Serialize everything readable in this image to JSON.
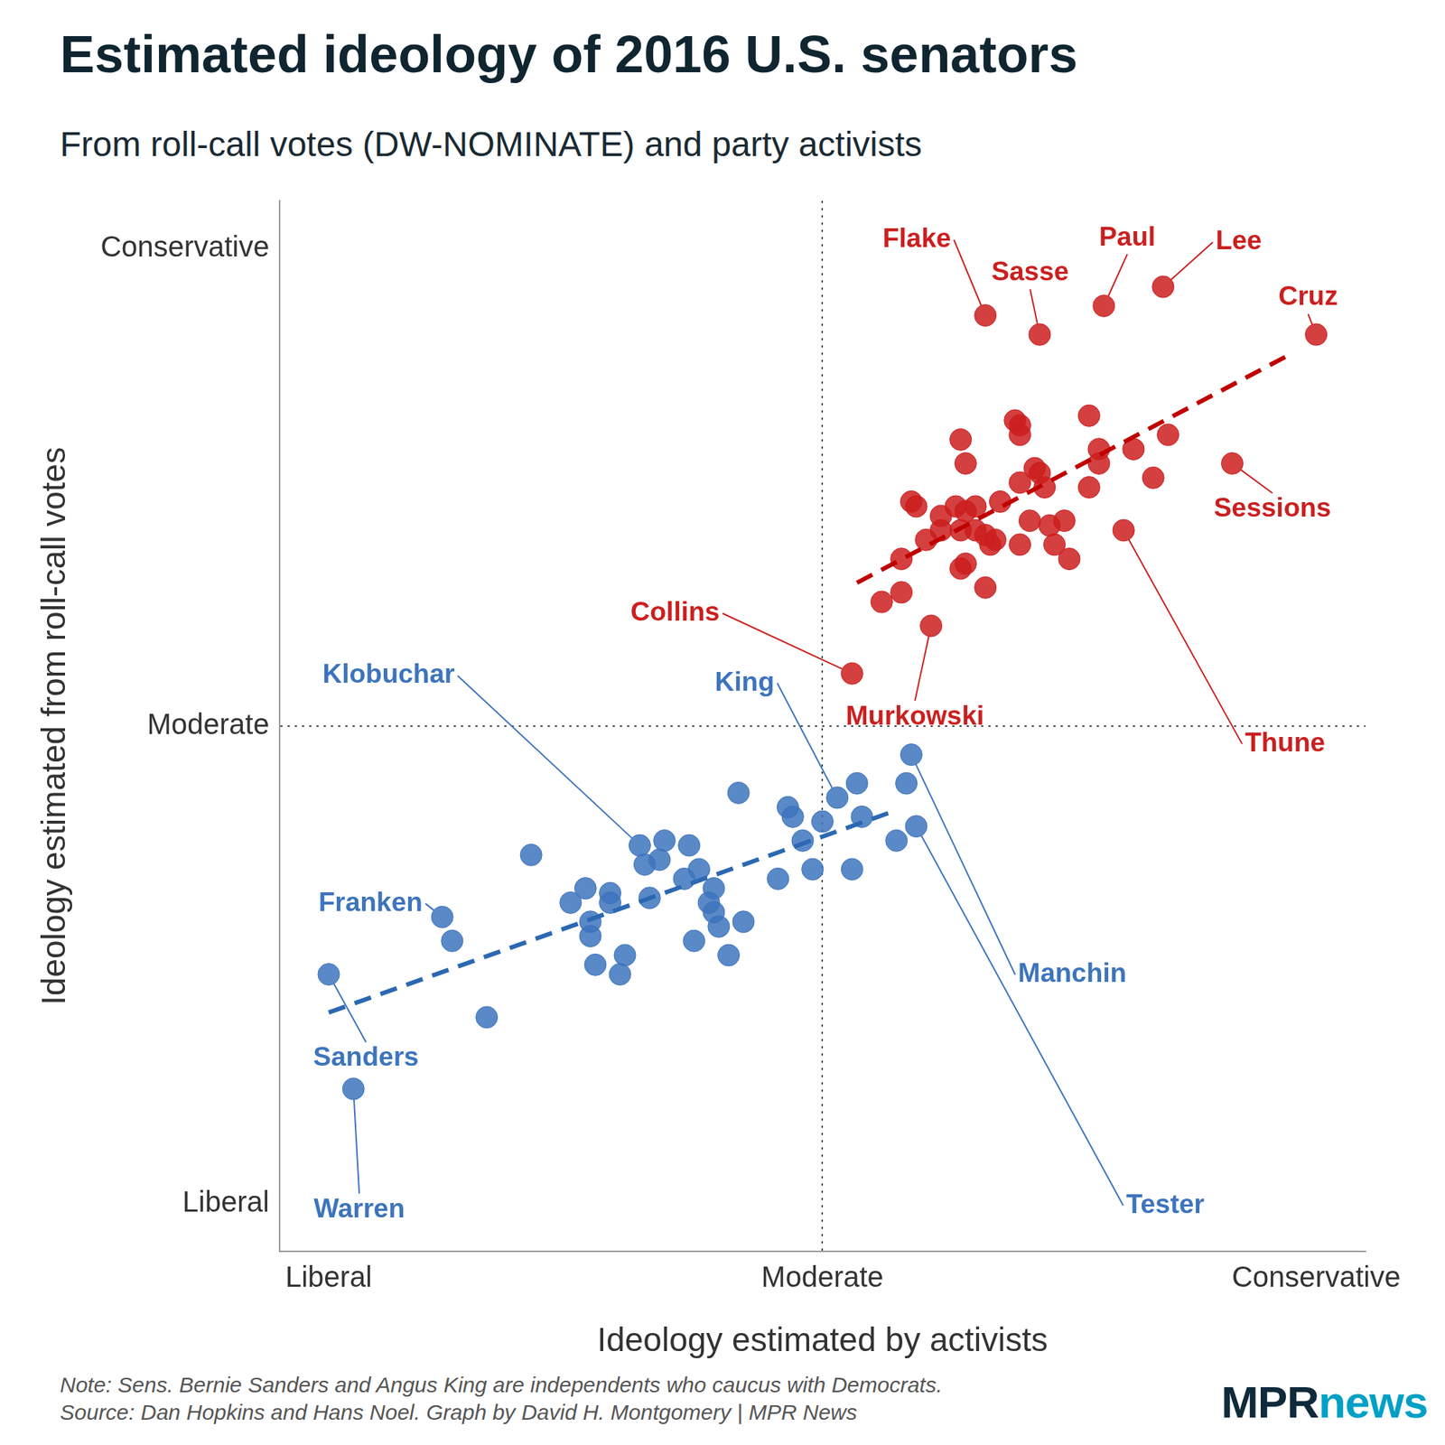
{
  "chart_data": {
    "type": "scatter",
    "title": "Estimated ideology of 2016 U.S. senators",
    "subtitle": "From roll-call votes (DW-NOMINATE) and party activists",
    "x_label": "Ideology estimated by activists",
    "y_label": "Ideology estimated from roll-call votes",
    "xlim": [
      -1.1,
      1.1
    ],
    "ylim": [
      -1.1,
      1.1
    ],
    "xticks": [
      {
        "value": -1,
        "label": "Liberal"
      },
      {
        "value": 0,
        "label": "Moderate"
      },
      {
        "value": 1,
        "label": "Conservative"
      }
    ],
    "yticks": [
      {
        "value": -1,
        "label": "Liberal"
      },
      {
        "value": 0,
        "label": "Moderate"
      },
      {
        "value": 1,
        "label": "Conservative"
      }
    ],
    "grid": true,
    "series": [
      {
        "color": "#3d74bd",
        "marker": "circle",
        "x": [
          -0.37,
          0.03,
          -0.77,
          -1.0,
          -0.95,
          0.18,
          0.19,
          0.17,
          0.07,
          0.15,
          0.08,
          0.0,
          -0.07,
          -0.06,
          -0.04,
          0.06,
          -0.02,
          -0.09,
          -0.17,
          -0.16,
          -0.19,
          -0.21,
          -0.23,
          -0.22,
          -0.25,
          -0.22,
          -0.27,
          -0.32,
          -0.33,
          -0.36,
          -0.28,
          -0.35,
          -0.43,
          -0.43,
          -0.48,
          -0.51,
          -0.47,
          -0.47,
          -0.4,
          -0.46,
          -0.41,
          -0.26,
          -0.59,
          -0.75,
          -0.68
        ],
        "values": [
          -0.25,
          -0.15,
          -0.4,
          -0.52,
          -0.76,
          -0.06,
          -0.21,
          -0.12,
          -0.12,
          -0.24,
          -0.19,
          -0.2,
          -0.17,
          -0.19,
          -0.24,
          -0.3,
          -0.3,
          -0.32,
          -0.14,
          -0.41,
          -0.48,
          -0.42,
          -0.37,
          -0.39,
          -0.3,
          -0.34,
          -0.25,
          -0.24,
          -0.28,
          -0.29,
          -0.32,
          -0.36,
          -0.35,
          -0.37,
          -0.34,
          -0.37,
          -0.41,
          -0.44,
          -0.48,
          -0.5,
          -0.52,
          -0.45,
          -0.27,
          -0.45,
          -0.61
        ],
        "point_labels": [
          "Klobuchar",
          "King",
          "Franken",
          "Sanders",
          "Warren",
          "Manchin",
          "Tester",
          null,
          null,
          null,
          null,
          null,
          null,
          null,
          null,
          null,
          null,
          null,
          null,
          null,
          null,
          null,
          null,
          null,
          null,
          null,
          null,
          null,
          null,
          null,
          null,
          null,
          null,
          null,
          null,
          null,
          null,
          null,
          null,
          null,
          null,
          null,
          null,
          null,
          null
        ]
      },
      {
        "color": "#cc1f1f",
        "marker": "circle",
        "x": [
          0.33,
          0.44,
          0.57,
          0.69,
          1.0,
          0.83,
          0.61,
          0.06,
          0.22,
          0.54,
          0.39,
          0.4,
          0.4,
          0.28,
          0.7,
          0.29,
          0.63,
          0.56,
          0.56,
          0.43,
          0.44,
          0.45,
          0.4,
          0.67,
          0.54,
          0.18,
          0.19,
          0.27,
          0.31,
          0.24,
          0.29,
          0.36,
          0.49,
          0.42,
          0.46,
          0.24,
          0.28,
          0.31,
          0.33,
          0.35,
          0.21,
          0.34,
          0.4,
          0.47,
          0.16,
          0.29,
          0.28,
          0.5,
          0.33,
          0.16,
          0.12
        ],
        "values": [
          0.86,
          0.82,
          0.88,
          0.92,
          0.82,
          0.55,
          0.41,
          0.11,
          0.21,
          0.65,
          0.64,
          0.63,
          0.61,
          0.6,
          0.61,
          0.55,
          0.58,
          0.58,
          0.55,
          0.54,
          0.53,
          0.5,
          0.51,
          0.52,
          0.5,
          0.47,
          0.46,
          0.46,
          0.46,
          0.44,
          0.45,
          0.47,
          0.43,
          0.43,
          0.42,
          0.41,
          0.41,
          0.41,
          0.4,
          0.39,
          0.39,
          0.38,
          0.38,
          0.38,
          0.35,
          0.34,
          0.33,
          0.35,
          0.29,
          0.28,
          0.26
        ],
        "point_labels": [
          "Flake",
          "Sasse",
          "Paul",
          "Lee",
          "Cruz",
          "Sessions",
          "Thune",
          "Collins",
          "Murkowski",
          null,
          null,
          null,
          null,
          null,
          null,
          null,
          null,
          null,
          null,
          null,
          null,
          null,
          null,
          null,
          null,
          null,
          null,
          null,
          null,
          null,
          null,
          null,
          null,
          null,
          null,
          null,
          null,
          null,
          null,
          null,
          null,
          null,
          null,
          null,
          null,
          null,
          null,
          null,
          null,
          null,
          null
        ]
      },
      {
        "type": "line",
        "line_style": "dashed",
        "color": "#2c68b2",
        "x": [
          -1.0,
          0.14
        ],
        "values": [
          -0.6,
          -0.18
        ]
      },
      {
        "type": "line",
        "line_style": "dashed",
        "color": "#c00000",
        "x": [
          0.07,
          0.95
        ],
        "values": [
          0.3,
          0.78
        ]
      }
    ],
    "notes": [
      "Note: Sens. Bernie Sanders and Angus King are independents who caucus with Democrats.",
      "Source: Dan Hopkins and Hans Noel. Graph by David H. Montgomery | MPR News"
    ],
    "logo": [
      "MPR",
      "news"
    ]
  }
}
